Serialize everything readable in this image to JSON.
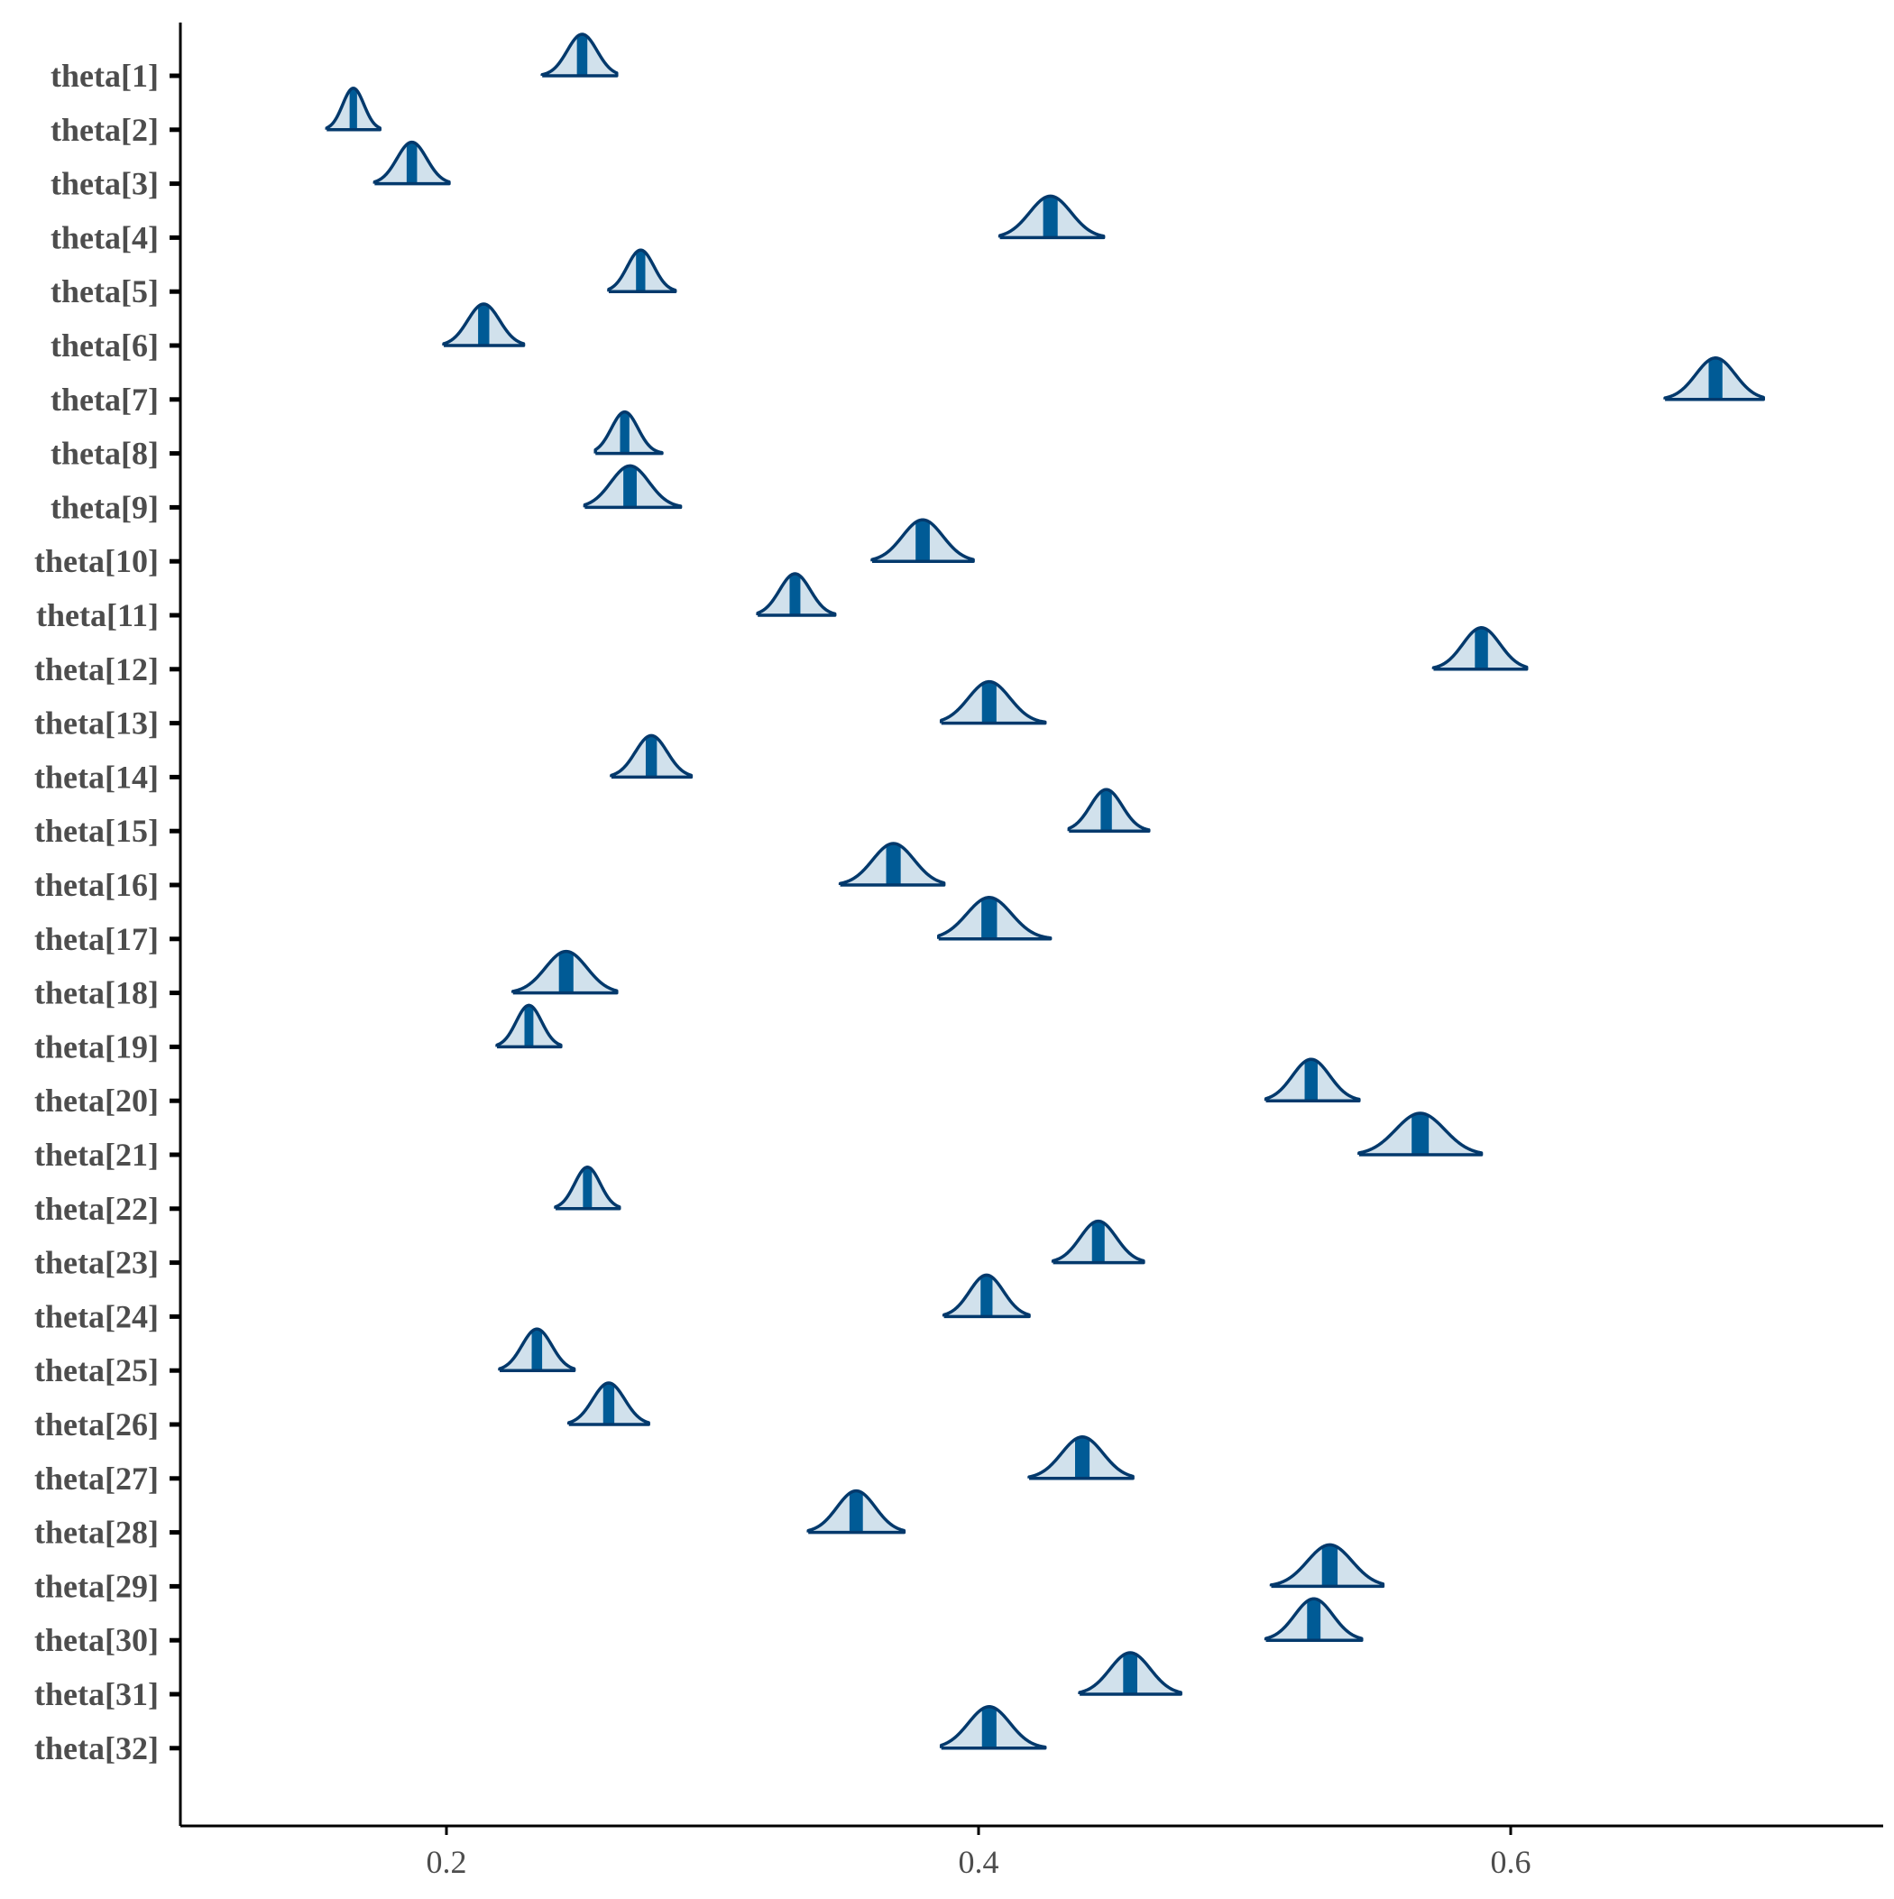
{
  "chart_data": {
    "type": "ridgeline-density",
    "title": "",
    "xlabel": "",
    "ylabel": "",
    "xlim": [
      0.1,
      0.74
    ],
    "x_ticks": [
      0.2,
      0.4,
      0.6
    ],
    "x_tick_labels": [
      "0.2",
      "0.4",
      "0.6"
    ],
    "grid": false,
    "colors": {
      "outline": "#03396c",
      "fill_light": "#d1e1ec",
      "median_bar": "#005b96",
      "axis": "#000000",
      "label_text": "#4d4d4d"
    },
    "series": [
      {
        "name": "theta[1]",
        "median": 0.251,
        "lo": 0.236,
        "hi": 0.264
      },
      {
        "name": "theta[2]",
        "median": 0.165,
        "lo": 0.155,
        "hi": 0.175
      },
      {
        "name": "theta[3]",
        "median": 0.187,
        "lo": 0.173,
        "hi": 0.201
      },
      {
        "name": "theta[4]",
        "median": 0.427,
        "lo": 0.408,
        "hi": 0.447
      },
      {
        "name": "theta[5]",
        "median": 0.273,
        "lo": 0.261,
        "hi": 0.286
      },
      {
        "name": "theta[6]",
        "median": 0.214,
        "lo": 0.199,
        "hi": 0.229
      },
      {
        "name": "theta[7]",
        "median": 0.677,
        "lo": 0.658,
        "hi": 0.695
      },
      {
        "name": "theta[8]",
        "median": 0.267,
        "lo": 0.256,
        "hi": 0.281
      },
      {
        "name": "theta[9]",
        "median": 0.269,
        "lo": 0.252,
        "hi": 0.288
      },
      {
        "name": "theta[10]",
        "median": 0.379,
        "lo": 0.36,
        "hi": 0.398
      },
      {
        "name": "theta[11]",
        "median": 0.331,
        "lo": 0.317,
        "hi": 0.346
      },
      {
        "name": "theta[12]",
        "median": 0.589,
        "lo": 0.571,
        "hi": 0.606
      },
      {
        "name": "theta[13]",
        "median": 0.404,
        "lo": 0.386,
        "hi": 0.425
      },
      {
        "name": "theta[14]",
        "median": 0.277,
        "lo": 0.262,
        "hi": 0.292
      },
      {
        "name": "theta[15]",
        "median": 0.448,
        "lo": 0.434,
        "hi": 0.464
      },
      {
        "name": "theta[16]",
        "median": 0.368,
        "lo": 0.348,
        "hi": 0.387
      },
      {
        "name": "theta[17]",
        "median": 0.404,
        "lo": 0.385,
        "hi": 0.427
      },
      {
        "name": "theta[18]",
        "median": 0.245,
        "lo": 0.225,
        "hi": 0.264
      },
      {
        "name": "theta[19]",
        "median": 0.231,
        "lo": 0.219,
        "hi": 0.243
      },
      {
        "name": "theta[20]",
        "median": 0.525,
        "lo": 0.508,
        "hi": 0.543
      },
      {
        "name": "theta[21]",
        "median": 0.566,
        "lo": 0.543,
        "hi": 0.589
      },
      {
        "name": "theta[22]",
        "median": 0.253,
        "lo": 0.241,
        "hi": 0.265
      },
      {
        "name": "theta[23]",
        "median": 0.445,
        "lo": 0.428,
        "hi": 0.462
      },
      {
        "name": "theta[24]",
        "median": 0.403,
        "lo": 0.387,
        "hi": 0.419
      },
      {
        "name": "theta[25]",
        "median": 0.234,
        "lo": 0.22,
        "hi": 0.248
      },
      {
        "name": "theta[26]",
        "median": 0.261,
        "lo": 0.246,
        "hi": 0.276
      },
      {
        "name": "theta[27]",
        "median": 0.439,
        "lo": 0.419,
        "hi": 0.458
      },
      {
        "name": "theta[28]",
        "median": 0.354,
        "lo": 0.336,
        "hi": 0.372
      },
      {
        "name": "theta[29]",
        "median": 0.532,
        "lo": 0.51,
        "hi": 0.552
      },
      {
        "name": "theta[30]",
        "median": 0.526,
        "lo": 0.508,
        "hi": 0.544
      },
      {
        "name": "theta[31]",
        "median": 0.457,
        "lo": 0.438,
        "hi": 0.476
      },
      {
        "name": "theta[32]",
        "median": 0.404,
        "lo": 0.386,
        "hi": 0.425
      }
    ]
  }
}
